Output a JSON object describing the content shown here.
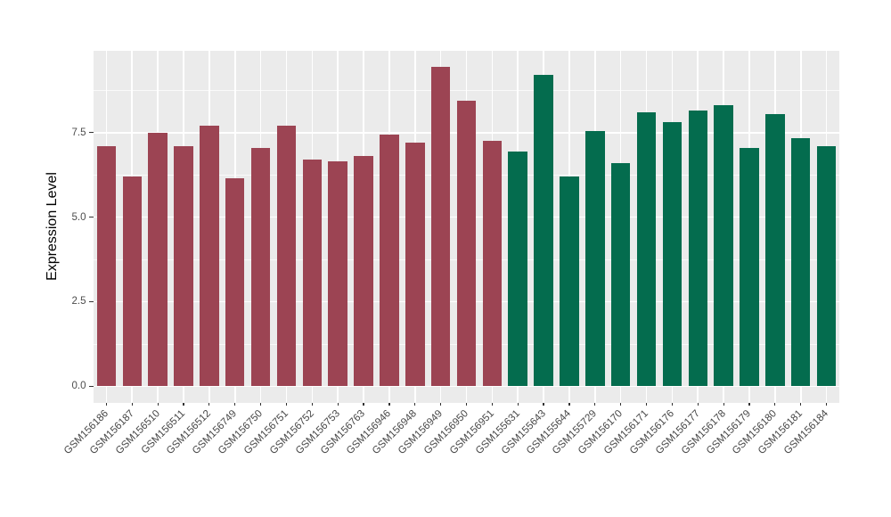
{
  "chart_data": {
    "type": "bar",
    "title": "",
    "xlabel": "",
    "ylabel": "Expression Level",
    "ylim": [
      0,
      9.9
    ],
    "y_tick_values": [
      0,
      2.5,
      5,
      7.5
    ],
    "y_tick_labels": [
      "0.0",
      "2.5",
      "5.0",
      "7.5"
    ],
    "grid": true,
    "legend_position": "none",
    "panel_background": "#EBEBEB",
    "gridline_color": "#FFFFFF",
    "palette": {
      "maroon": "#9C4453",
      "green": "#046C4E"
    },
    "categories": [
      "GSM156186",
      "GSM156187",
      "GSM156510",
      "GSM156511",
      "GSM156512",
      "GSM156749",
      "GSM156750",
      "GSM156751",
      "GSM156752",
      "GSM156753",
      "GSM156763",
      "GSM156946",
      "GSM156948",
      "GSM156949",
      "GSM156950",
      "GSM156951",
      "GSM155631",
      "GSM155643",
      "GSM155644",
      "GSM155729",
      "GSM156170",
      "GSM156171",
      "GSM156176",
      "GSM156177",
      "GSM156178",
      "GSM156179",
      "GSM156180",
      "GSM156181",
      "GSM156184"
    ],
    "groups": [
      "maroon",
      "maroon",
      "maroon",
      "maroon",
      "maroon",
      "maroon",
      "maroon",
      "maroon",
      "maroon",
      "maroon",
      "maroon",
      "maroon",
      "maroon",
      "maroon",
      "maroon",
      "maroon",
      "green",
      "green",
      "green",
      "green",
      "green",
      "green",
      "green",
      "green",
      "green",
      "green",
      "green",
      "green",
      "green"
    ],
    "values": [
      7.1,
      6.2,
      7.5,
      7.1,
      7.7,
      6.15,
      7.05,
      7.7,
      6.7,
      6.65,
      6.8,
      7.45,
      7.2,
      9.45,
      8.45,
      7.25,
      6.95,
      9.2,
      6.2,
      7.55,
      6.6,
      8.1,
      7.8,
      8.15,
      8.3,
      7.05,
      8.05,
      7.35,
      7.1
    ]
  }
}
